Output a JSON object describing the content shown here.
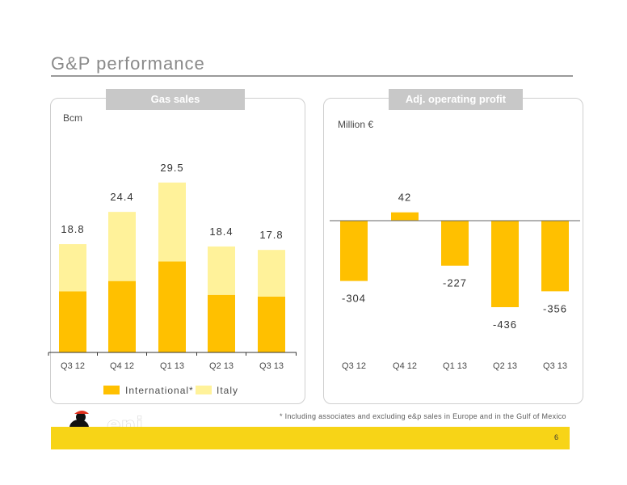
{
  "page": {
    "title": "G&P performance",
    "footnote": "*   Including associates and excluding e&p sales in Europe and in the Gulf of Mexico",
    "page_number": "6",
    "logo_text": "eni"
  },
  "colors": {
    "international": "#ffc000",
    "italy": "#fff29a",
    "profit": "#ffc000",
    "footer": "#f7d417",
    "header": "#c8c8c8"
  },
  "chart_data": [
    {
      "type": "bar",
      "title": "Gas sales",
      "ylabel": "Bcm",
      "categories": [
        "Q3 12",
        "Q4 12",
        "Q1 13",
        "Q2 13",
        "Q3 13"
      ],
      "series": [
        {
          "name": "International*",
          "values": [
            10.6,
            12.4,
            15.8,
            10.0,
            9.7
          ]
        },
        {
          "name": "Italy",
          "values": [
            8.2,
            12.0,
            13.7,
            8.4,
            8.1
          ]
        }
      ],
      "totals": [
        "18.8",
        "24.4",
        "29.5",
        "18.4",
        "17.8"
      ],
      "ylim": [
        0,
        32
      ],
      "stacked": true,
      "legend": "bottom"
    },
    {
      "type": "bar",
      "title": "Adj. operating profit",
      "ylabel": "Million €",
      "categories": [
        "Q3 12",
        "Q4 12",
        "Q1 13",
        "Q2 13",
        "Q3 13"
      ],
      "values": [
        -304,
        42,
        -227,
        -436,
        -356
      ],
      "labels": [
        "-304",
        "42",
        "-227",
        "-436",
        "-356"
      ],
      "ylim": [
        -500,
        100
      ]
    }
  ]
}
